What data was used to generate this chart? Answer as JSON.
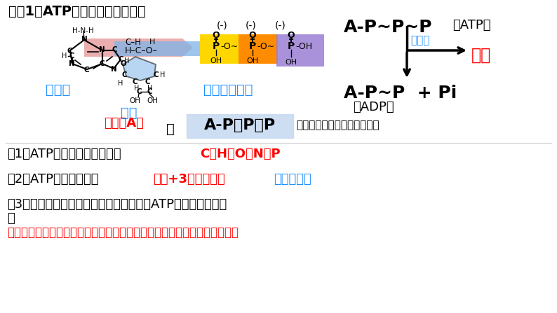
{
  "bg_color": "#ffffff",
  "title": "问题1：ATP具有什么样的结构？",
  "adenine_label": "腺嘌呤",
  "ribose_label": "核糖",
  "phosphate_label": "三个磷酸基团",
  "adenosine_label": "腺苷（A）",
  "atp_box_label": "A-P～P～P",
  "tilde_note": "（～代表一种特殊的化学键）",
  "atp_top": "A-P～P～P",
  "atp_top_suffix": "（ATP）",
  "hydrolysis": "水解酶",
  "energy": "能量",
  "adp_line": "A-P～P  + Pi",
  "adp_label": "（ADP）",
  "q1_prefix": "（1）ATP的组成元素有哪些？",
  "q1_answer": "C、H、O、N、P",
  "q2_prefix": "（2）ATP由什么构成？",
  "q2_answer1": "腺苷+3个磷酸基团",
  "q2_answer2": "腺苷三磷酸",
  "q3_text": "（3）磷酸基团带负电，从电荷角度出发，ATP分子有什么特点",
  "q3_sub": "？",
  "q4_text": "～这种化学键不稳定，具有较高的转移势能。末端磷酸基团易水解和形成。",
  "blue": "#1E90FF",
  "red": "#FF0000",
  "black": "#000000",
  "yellow": "#FFD700",
  "orange": "#FF8C00",
  "purple": "#9B7FD4",
  "light_blue_box": "#C5D8F0",
  "sky_blue": "#7EB4E8",
  "pink": "#E8A0A0"
}
